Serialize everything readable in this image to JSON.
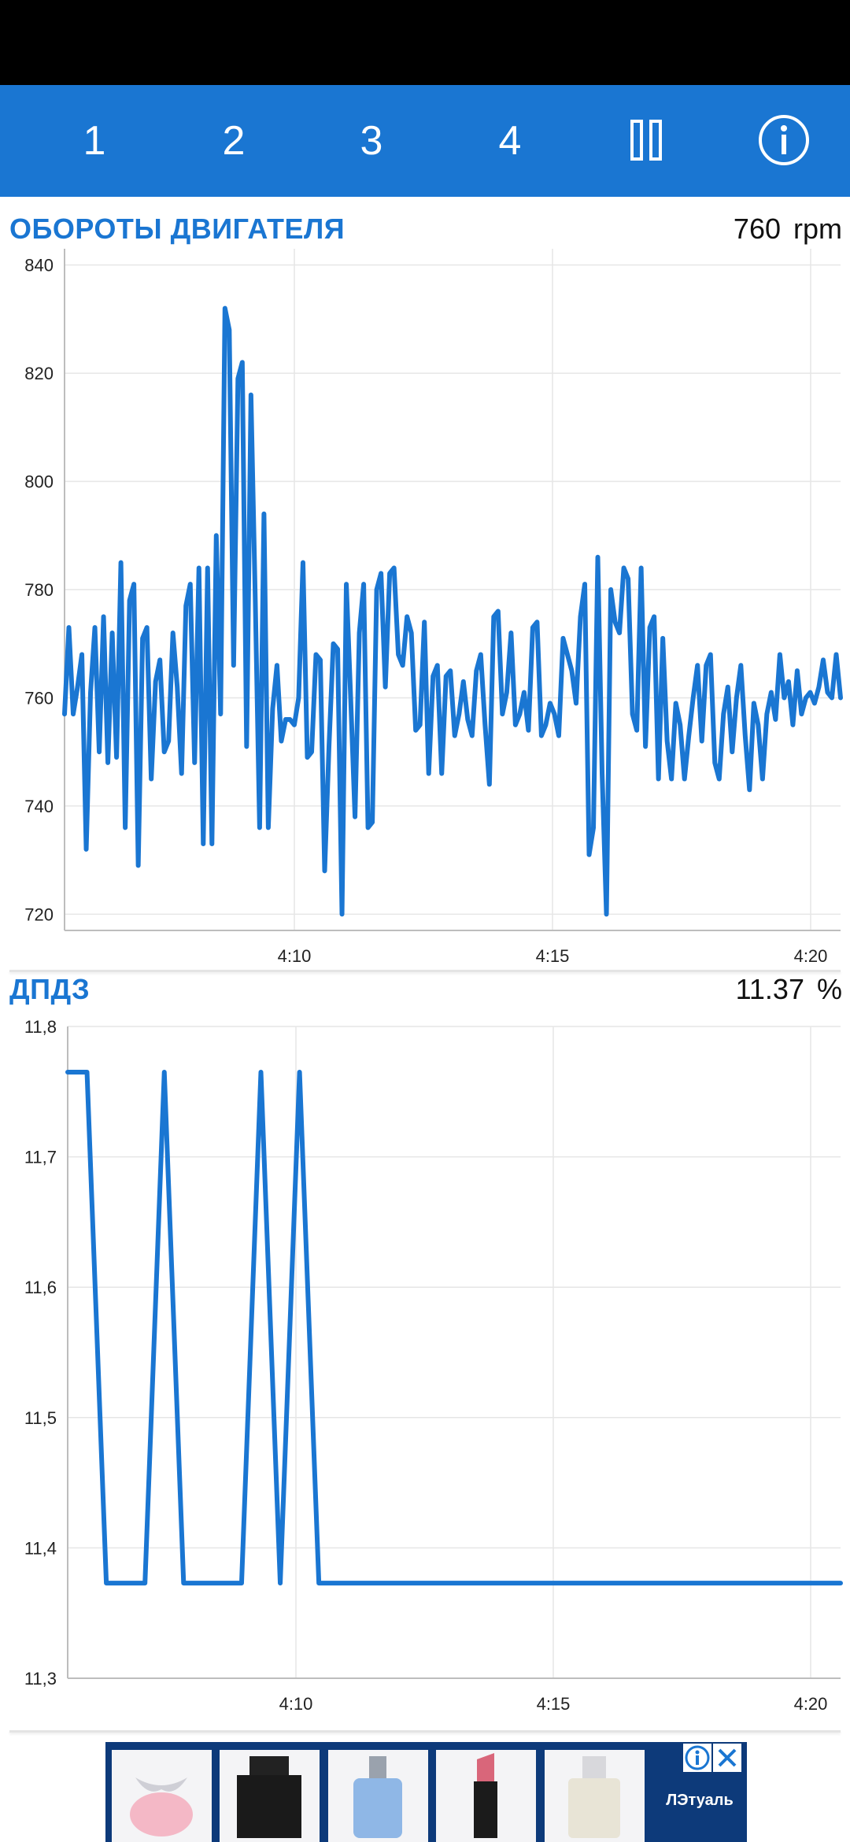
{
  "toolbar": {
    "tabs": [
      {
        "label": "1"
      },
      {
        "label": "2"
      },
      {
        "label": "3"
      },
      {
        "label": "4"
      }
    ],
    "pause_icon": "pause-icon",
    "info_icon": "info-icon",
    "background_color": "#1a76d2"
  },
  "rpm_panel": {
    "title": "ОБОРОТЫ ДВИГАТЕЛЯ",
    "value": "760",
    "unit": "rpm",
    "accent_color": "#1a76d2"
  },
  "tps_panel": {
    "title": "ДПДЗ",
    "value": "11.37",
    "unit": "%",
    "accent_color": "#1a76d2"
  },
  "ad": {
    "brand_label": "ЛЭтуаль",
    "info_icon": "ad-info-icon",
    "close_icon": "ad-close-icon"
  },
  "chart_data": [
    {
      "type": "line",
      "title": "ОБОРОТЫ ДВИГАТЕЛЯ",
      "y_ticks": [
        "840",
        "820",
        "800",
        "780",
        "760",
        "740",
        "720"
      ],
      "ylim": [
        717,
        843
      ],
      "x_ticks": [
        "4:10",
        "4:15",
        "4:20"
      ],
      "x": [
        0,
        1,
        2,
        3,
        4,
        5,
        6,
        7,
        8,
        9,
        10,
        11,
        12,
        13,
        14,
        15,
        16,
        17,
        18,
        19,
        20,
        21,
        22,
        23,
        24,
        25,
        26,
        27,
        28,
        29,
        30,
        31,
        32,
        33,
        34,
        35,
        36,
        37,
        38,
        39,
        40,
        41,
        42,
        43,
        44,
        45,
        46,
        47,
        48,
        49,
        50,
        51,
        52,
        53,
        54,
        55,
        56,
        57,
        58,
        59,
        60,
        61,
        62,
        63,
        64,
        65,
        66,
        67,
        68,
        69,
        70,
        71,
        72,
        73,
        74,
        75,
        76,
        77,
        78,
        79,
        80,
        81,
        82,
        83,
        84,
        85,
        86,
        87,
        88,
        89,
        90,
        91,
        92,
        93,
        94,
        95,
        96,
        97,
        98,
        99,
        100,
        101,
        102,
        103,
        104,
        105,
        106,
        107,
        108,
        109,
        110,
        111,
        112,
        113,
        114,
        115,
        116,
        117,
        118,
        119,
        120,
        121,
        122,
        123,
        124,
        125,
        126,
        127,
        128,
        129,
        130,
        131,
        132,
        133,
        134,
        135,
        136,
        137,
        138,
        139,
        140,
        141,
        142,
        143,
        144,
        145,
        146,
        147,
        148,
        149,
        150,
        151,
        152,
        153,
        154,
        155,
        156,
        157,
        158,
        159,
        160,
        161,
        162,
        163,
        164,
        165,
        166,
        167,
        168,
        169,
        170,
        171,
        172,
        173,
        174,
        175,
        176,
        177,
        178,
        179
      ],
      "series": [
        {
          "values": [
            757,
            773,
            757,
            762,
            768,
            732,
            761,
            773,
            750,
            775,
            748,
            772,
            749,
            785,
            736,
            778,
            781,
            729,
            771,
            773,
            745,
            763,
            767,
            750,
            752,
            772,
            762,
            746,
            777,
            781,
            748,
            784,
            733,
            784,
            733,
            790,
            757,
            832,
            828,
            766,
            819,
            822,
            751,
            816,
            778,
            736,
            794,
            736,
            758,
            766,
            752,
            756,
            756,
            755,
            760,
            785,
            749,
            750,
            768,
            767,
            728,
            751,
            770,
            769,
            720,
            781,
            760,
            738,
            772,
            781,
            736,
            737,
            780,
            783,
            762,
            783,
            784,
            768,
            766,
            775,
            772,
            754,
            755,
            774,
            746,
            764,
            766,
            746,
            764,
            765,
            753,
            757,
            763,
            756,
            753,
            765,
            768,
            755,
            744,
            775,
            776,
            757,
            761,
            772,
            755,
            757,
            761,
            754,
            773,
            774,
            753,
            755,
            759,
            757,
            753,
            771,
            768,
            765,
            759,
            775,
            781,
            731,
            736,
            786,
            746,
            720,
            780,
            774,
            772,
            784,
            782,
            757,
            754,
            784,
            751,
            773,
            775,
            745,
            771,
            752,
            745,
            759,
            755,
            745,
            753,
            760,
            766,
            752,
            766,
            768,
            748,
            745,
            757,
            762,
            750,
            760,
            766,
            753,
            743,
            759,
            755,
            745,
            757,
            761,
            756,
            768,
            760,
            763,
            755,
            765,
            757,
            760,
            761,
            759,
            762,
            767,
            761,
            760,
            768,
            760
          ]
        }
      ]
    },
    {
      "type": "line",
      "title": "ДПДЗ",
      "y_ticks": [
        "11,8",
        "11,7",
        "11,6",
        "11,5",
        "11,4",
        "11,3"
      ],
      "ylim": [
        11.3,
        11.8
      ],
      "x_ticks": [
        "4:10",
        "4:15",
        "4:20"
      ],
      "x": [
        0,
        1,
        2,
        3,
        4,
        5,
        6,
        7,
        8,
        9,
        10,
        11,
        12,
        13,
        14,
        15,
        16,
        17,
        18,
        19,
        20,
        21,
        22,
        23,
        24,
        25,
        26,
        27,
        28,
        29,
        30,
        31,
        32,
        33,
        34,
        35,
        36,
        37,
        38,
        39,
        40
      ],
      "series": [
        {
          "values": [
            11.765,
            11.765,
            11.373,
            11.373,
            11.373,
            11.765,
            11.373,
            11.373,
            11.373,
            11.373,
            11.765,
            11.373,
            11.765,
            11.373,
            11.373,
            11.373,
            11.373,
            11.373,
            11.373,
            11.373,
            11.373,
            11.373,
            11.373,
            11.373,
            11.373,
            11.373,
            11.373,
            11.373,
            11.373,
            11.373,
            11.373,
            11.373,
            11.373,
            11.373,
            11.373,
            11.373,
            11.373,
            11.373,
            11.373,
            11.373,
            11.373
          ]
        }
      ]
    }
  ]
}
